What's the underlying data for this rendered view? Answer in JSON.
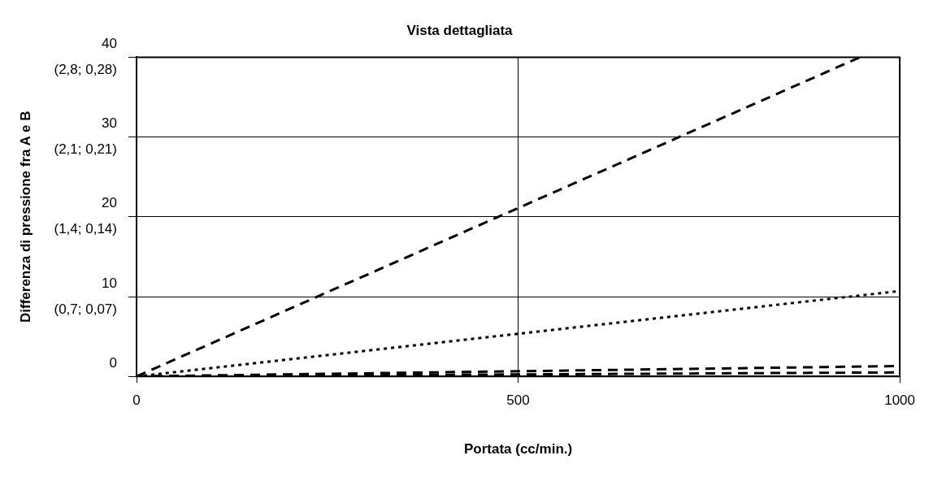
{
  "chart_data": {
    "type": "line",
    "title": "Vista dettagliata",
    "xlabel": "Portata (cc/min.)",
    "ylabel": "Differenza di pressione fra A e B",
    "xlim": [
      0,
      1000
    ],
    "xticks": [
      0,
      500,
      1000
    ],
    "ylim": [
      0,
      40
    ],
    "yticks": [
      0,
      10,
      20,
      30,
      40
    ],
    "annotations": [
      "(0,7; 0,07)",
      "(1,4; 0,14)",
      "(2,1; 0,21)",
      "(2,8; 0,28)"
    ],
    "grid": true,
    "legend": false,
    "marker": "none",
    "series": [
      {
        "color": "#000000",
        "line_style": "dashed",
        "x": [
          0,
          948
        ],
        "values": [
          0,
          40
        ]
      },
      {
        "color": "#000000",
        "line_style": "dotted",
        "x": [
          0,
          1000
        ],
        "values": [
          0,
          10.7
        ]
      },
      {
        "color": "#000000",
        "line_style": "dashed",
        "x": [
          0,
          1000
        ],
        "values": [
          0,
          1.3
        ]
      },
      {
        "color": "#000000",
        "line_style": "dashed",
        "x": [
          0,
          1000
        ],
        "values": [
          0,
          0.5
        ]
      }
    ]
  }
}
